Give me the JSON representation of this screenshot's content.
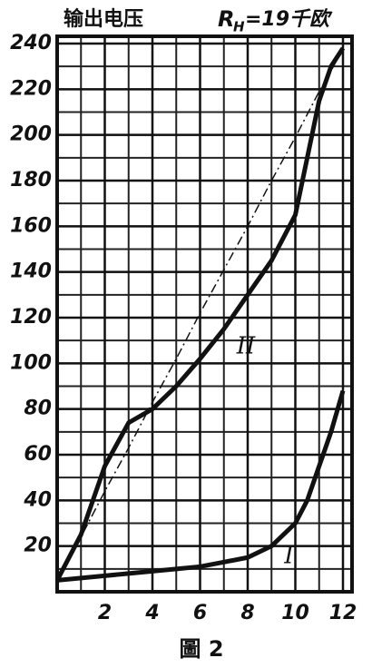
{
  "chart_data": {
    "type": "line",
    "title": "输出电压",
    "load_symbol": "R",
    "load_subscript": "H",
    "load_value": "=19千欧",
    "caption": "圖 2",
    "x": [
      0,
      1,
      2,
      3,
      4,
      5,
      6,
      7,
      8,
      9,
      10,
      10.5,
      11,
      11.5,
      12
    ],
    "series": [
      {
        "name": "I",
        "color": "#111111",
        "style": "solid",
        "values": [
          5,
          6,
          7,
          8,
          9,
          10,
          11,
          13,
          15,
          20,
          30,
          40,
          55,
          70,
          88
        ]
      },
      {
        "name": "II",
        "color": "#111111",
        "style": "solid",
        "values": [
          5,
          25,
          55,
          74,
          80,
          90,
          102,
          115,
          130,
          145,
          165,
          190,
          215,
          230,
          238
        ]
      },
      {
        "color": "#111111",
        "style": "dashed",
        "values": [
          5,
          24,
          44,
          63,
          83,
          102,
          122,
          141,
          160,
          180,
          199,
          209,
          219,
          228,
          238
        ]
      }
    ],
    "xlim": [
      0,
      12
    ],
    "ylim": [
      0,
      240
    ],
    "xticks": [
      2,
      4,
      6,
      8,
      10,
      12
    ],
    "yticks": [
      20,
      40,
      60,
      80,
      100,
      120,
      140,
      160,
      180,
      200,
      220,
      240
    ],
    "grid": true,
    "grid_x_step": 1,
    "grid_y_step": 10
  }
}
